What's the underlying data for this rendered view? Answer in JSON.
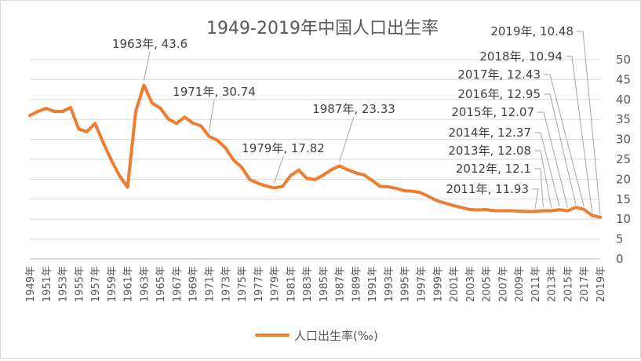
{
  "chart_data": {
    "type": "line",
    "title": "1949-2019年中国人口出生率",
    "xlabel": "",
    "ylabel": "",
    "ylim": [
      0,
      50
    ],
    "yticks": [
      "0",
      "5",
      "10",
      "15",
      "20",
      "25",
      "30",
      "35",
      "40",
      "45",
      "50"
    ],
    "y_axis_side": "right",
    "grid": true,
    "legend": "bottom",
    "line_color": "#ED7D31",
    "x": [
      "1949年",
      "1950年",
      "1951年",
      "1952年",
      "1953年",
      "1954年",
      "1955年",
      "1956年",
      "1957年",
      "1958年",
      "1959年",
      "1960年",
      "1961年",
      "1962年",
      "1963年",
      "1964年",
      "1965年",
      "1966年",
      "1967年",
      "1968年",
      "1969年",
      "1970年",
      "1971年",
      "1972年",
      "1973年",
      "1974年",
      "1975年",
      "1976年",
      "1977年",
      "1978年",
      "1979年",
      "1980年",
      "1981年",
      "1982年",
      "1983年",
      "1984年",
      "1985年",
      "1986年",
      "1987年",
      "1988年",
      "1989年",
      "1990年",
      "1991年",
      "1992年",
      "1993年",
      "1994年",
      "1995年",
      "1996年",
      "1997年",
      "1998年",
      "1999年",
      "2000年",
      "2001年",
      "2002年",
      "2003年",
      "2004年",
      "2005年",
      "2006年",
      "2007年",
      "2008年",
      "2009年",
      "2010年",
      "2011年",
      "2012年",
      "2013年",
      "2014年",
      "2015年",
      "2016年",
      "2017年",
      "2018年",
      "2019年"
    ],
    "x_tick_labels": [
      "1949年",
      "1951年",
      "1953年",
      "1955年",
      "1957年",
      "1959年",
      "1961年",
      "1963年",
      "1965年",
      "1967年",
      "1969年",
      "1971年",
      "1973年",
      "1975年",
      "1977年",
      "1979年",
      "1981年",
      "1983年",
      "1985年",
      "1987年",
      "1989年",
      "1991年",
      "1993年",
      "1995年",
      "1997年",
      "1999年",
      "2001年",
      "2003年",
      "2005年",
      "2007年",
      "2009年",
      "2011年",
      "2013年",
      "2015年",
      "2017年",
      "2019年"
    ],
    "series": [
      {
        "name": "人口出生率(‰)",
        "values": [
          36.0,
          37.0,
          37.8,
          37.0,
          37.0,
          38.0,
          32.6,
          31.9,
          34.0,
          29.2,
          24.8,
          20.9,
          18.0,
          37.0,
          43.6,
          39.1,
          37.9,
          35.1,
          34.0,
          35.6,
          34.1,
          33.4,
          30.74,
          29.8,
          27.9,
          24.8,
          23.0,
          19.9,
          19.0,
          18.3,
          17.82,
          18.2,
          20.9,
          22.3,
          20.2,
          19.9,
          21.0,
          22.4,
          23.33,
          22.4,
          21.6,
          21.1,
          19.7,
          18.2,
          18.1,
          17.7,
          17.1,
          17.0,
          16.6,
          15.6,
          14.6,
          14.0,
          13.4,
          12.9,
          12.4,
          12.3,
          12.4,
          12.1,
          12.1,
          12.1,
          12.0,
          11.9,
          11.93,
          12.1,
          12.08,
          12.37,
          12.07,
          12.95,
          12.43,
          10.94,
          10.48
        ]
      }
    ],
    "annotations": [
      {
        "text": "1963年, 43.6",
        "x": "1963年"
      },
      {
        "text": "1971年, 30.74",
        "x": "1971年"
      },
      {
        "text": "1979年, 17.82",
        "x": "1979年"
      },
      {
        "text": "1987年, 23.33",
        "x": "1987年"
      },
      {
        "text": "2011年, 11.93",
        "x": "2011年"
      },
      {
        "text": "2012年, 12.1",
        "x": "2012年"
      },
      {
        "text": "2013年, 12.08",
        "x": "2013年"
      },
      {
        "text": "2014年, 12.37",
        "x": "2014年"
      },
      {
        "text": "2015年, 12.07",
        "x": "2015年"
      },
      {
        "text": "2016年, 12.95",
        "x": "2016年"
      },
      {
        "text": "2017年, 12.43",
        "x": "2017年"
      },
      {
        "text": "2018年, 10.94",
        "x": "2018年"
      },
      {
        "text": "2019年, 10.48",
        "x": "2019年"
      }
    ]
  }
}
